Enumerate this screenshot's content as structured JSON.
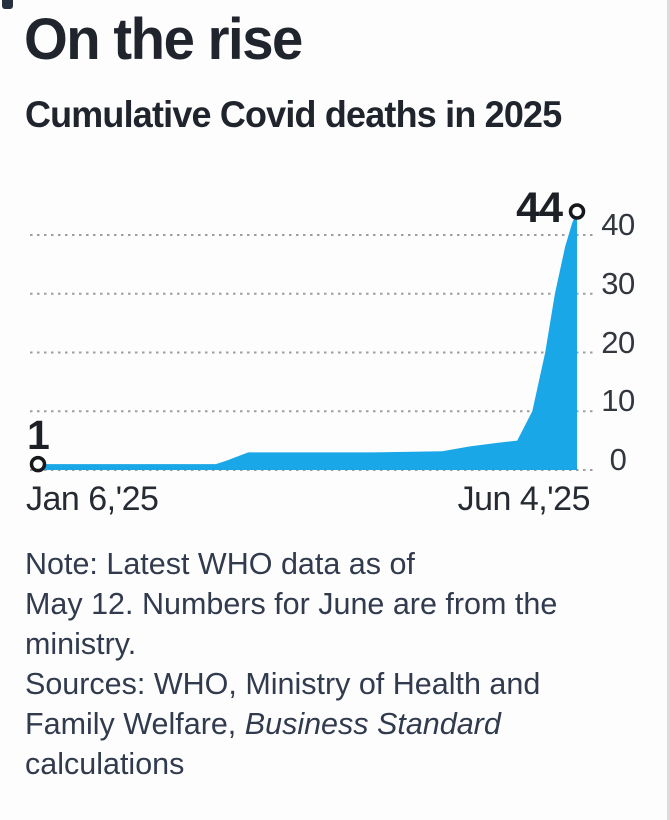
{
  "header": {
    "title": "On the rise",
    "subtitle": "Cumulative Covid deaths in 2025"
  },
  "chart_data": {
    "type": "area",
    "title": "On the rise",
    "subtitle": "Cumulative Covid deaths in 2025",
    "xlabel": "",
    "ylabel": "",
    "ylim": [
      0,
      46
    ],
    "yticks": [
      0,
      10,
      20,
      30,
      40
    ],
    "grid": "horizontal-dotted",
    "legend": "none",
    "x_axis": {
      "start_label": "Jan 6,'25",
      "end_label": "Jun 4,'25"
    },
    "annotations": [
      {
        "label": "1",
        "x_frac": 0,
        "value": 1,
        "marker": "open-circle"
      },
      {
        "label": "44",
        "x_frac": 1,
        "value": 44,
        "marker": "open-circle"
      }
    ],
    "points": [
      {
        "x_frac": 0.0,
        "value": 1
      },
      {
        "x_frac": 0.33,
        "value": 1
      },
      {
        "x_frac": 0.35,
        "value": 1.6
      },
      {
        "x_frac": 0.39,
        "value": 3
      },
      {
        "x_frac": 0.62,
        "value": 3
      },
      {
        "x_frac": 0.75,
        "value": 3.2
      },
      {
        "x_frac": 0.8,
        "value": 4
      },
      {
        "x_frac": 0.85,
        "value": 4.6
      },
      {
        "x_frac": 0.889,
        "value": 5
      },
      {
        "x_frac": 0.917,
        "value": 10
      },
      {
        "x_frac": 0.941,
        "value": 20
      },
      {
        "x_frac": 0.959,
        "value": 30
      },
      {
        "x_frac": 0.978,
        "value": 38
      },
      {
        "x_frac": 0.991,
        "value": 42
      },
      {
        "x_frac": 1.0,
        "value": 44
      }
    ]
  },
  "notes": {
    "line1": "Note: Latest WHO data as of",
    "line2": "May 12. Numbers for June are from the",
    "line3": "ministry.",
    "sources_line1": "Sources: WHO, Ministry of Health and",
    "sources_line2_prefix": "Family Welfare, ",
    "sources_line2_italic": "Business Standard",
    "sources_line3": "calculations"
  },
  "colors": {
    "area_fill": "#1aa7e8",
    "grid_dots": "#9e9e9e",
    "marker_stroke": "#17181c",
    "title_text": "#20242c",
    "note_text": "#313b4d",
    "tick_text": "#33383e"
  }
}
